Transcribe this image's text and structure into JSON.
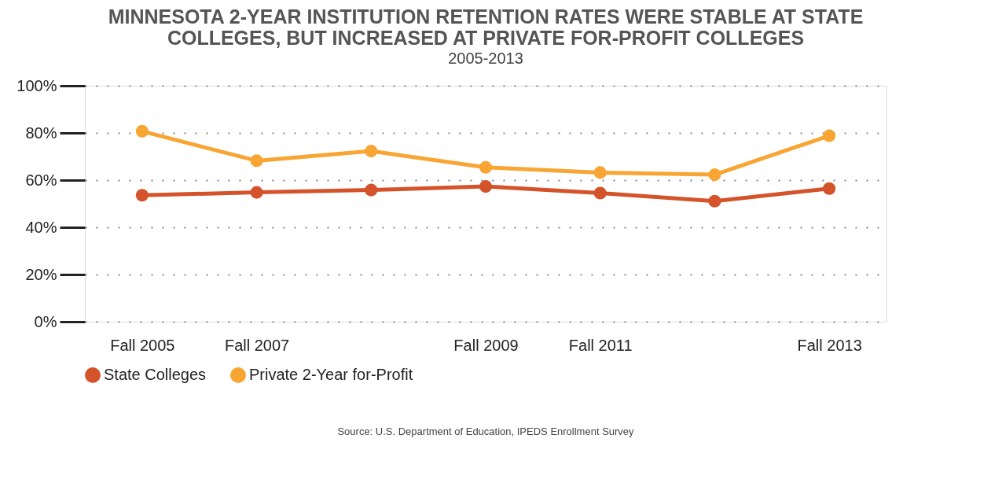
{
  "chart_data": {
    "type": "line",
    "title": "MINNESOTA 2-YEAR INSTITUTION RETENTION RATES WERE STABLE AT STATE COLLEGES, BUT INCREASED AT PRIVATE FOR-PROFIT COLLEGES",
    "subtitle": "2005-2013",
    "categories": [
      "Fall 2005",
      "Fall 2007",
      null,
      "Fall 2009",
      "Fall 2011",
      null,
      "Fall 2013"
    ],
    "series": [
      {
        "name": "State Colleges",
        "color": "#d4532b",
        "values": [
          53.6,
          54.8,
          55.8,
          57.3,
          54.5,
          51.1,
          56.4
        ]
      },
      {
        "name": "Private 2-Year for-Profit",
        "color": "#f9a533",
        "values": [
          80.7,
          68.2,
          72.3,
          65.4,
          63.2,
          62.3,
          78.8
        ]
      }
    ],
    "ylim": [
      0,
      100
    ],
    "yticks": [
      {
        "value": 0,
        "label": "0%"
      },
      {
        "value": 20,
        "label": "20%"
      },
      {
        "value": 40,
        "label": "40%"
      },
      {
        "value": 60,
        "label": "60%"
      },
      {
        "value": 80,
        "label": "80%"
      },
      {
        "value": 100,
        "label": "100%"
      }
    ],
    "grid": "y",
    "legend": "bottom",
    "marker": "circle",
    "line_style": "solid",
    "annotations": [
      "Source: U.S. Department of Education, IPEDS Enrollment Survey"
    ]
  }
}
